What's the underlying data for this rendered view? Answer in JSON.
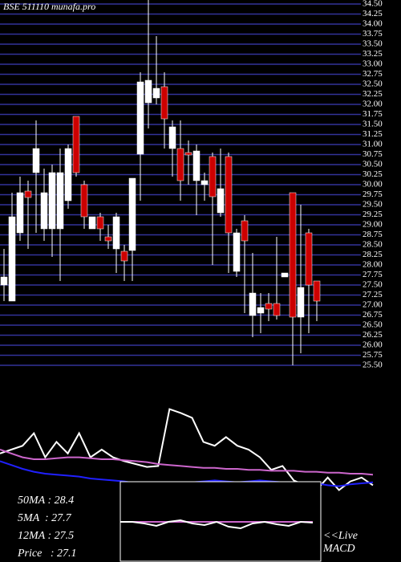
{
  "chart_data": [
    {
      "type": "candlestick",
      "title": "BSE 511110 munafa.pro",
      "open": [
        27.5,
        27.1,
        28.8,
        29.84,
        30.3,
        28.9,
        28.9,
        28.9,
        29.6,
        31.7,
        30.0,
        28.9,
        29.2,
        28.7,
        28.4,
        28.34,
        28.36,
        30.76,
        32.04,
        32.16,
        32.44,
        30.9,
        30.9,
        30.8,
        30.1,
        30.0,
        30.7,
        29.3,
        30.7,
        27.84,
        29.1,
        26.74,
        26.8,
        27.04,
        27.04,
        27.7,
        29.8,
        26.7,
        28.8,
        27.6
      ],
      "high": [
        28.4,
        29.8,
        30.2,
        30.1,
        31.6,
        30.4,
        30.5,
        30.9,
        31.0,
        31.7,
        30.1,
        29.2,
        29.3,
        29.0,
        29.3,
        28.5,
        30.16,
        32.8,
        34.6,
        33.7,
        32.8,
        31.6,
        31.6,
        31.1,
        31.0,
        30.3,
        30.8,
        30.9,
        30.8,
        28.9,
        29.24,
        28.3,
        27.3,
        27.3,
        28.7,
        27.8,
        29.8,
        29.5,
        28.9,
        27.6
      ],
      "low": [
        27.1,
        27.1,
        28.6,
        28.4,
        28.8,
        28.6,
        28.2,
        27.6,
        29.4,
        30.2,
        28.9,
        28.9,
        28.6,
        28.4,
        27.8,
        27.6,
        27.6,
        29.6,
        31.4,
        32.0,
        30.9,
        30.2,
        29.6,
        30.0,
        29.24,
        29.6,
        28.0,
        29.2,
        27.8,
        27.7,
        26.8,
        26.2,
        26.3,
        26.6,
        26.64,
        27.7,
        25.5,
        25.8,
        26.3,
        26.6
      ],
      "close": [
        27.7,
        29.2,
        29.8,
        29.68,
        30.9,
        29.8,
        30.3,
        30.3,
        30.9,
        30.3,
        29.2,
        29.2,
        28.9,
        28.6,
        29.2,
        28.1,
        30.16,
        32.56,
        32.6,
        32.4,
        31.64,
        31.44,
        30.1,
        30.74,
        30.84,
        30.1,
        29.7,
        29.9,
        28.8,
        28.8,
        28.6,
        27.3,
        26.94,
        26.9,
        26.74,
        27.8,
        26.7,
        27.44,
        27.5,
        27.1
      ],
      "ylim": [
        25.5,
        34.6
      ],
      "yticks": [
        {
          "value": 25.5,
          "label": "25.50"
        },
        25.75,
        {
          "value": 26,
          "label": "26.00"
        },
        26.25,
        {
          "value": 26.5,
          "label": "26.50"
        },
        26.75,
        {
          "value": 27,
          "label": "27.00"
        },
        27.25,
        {
          "value": 27.5,
          "label": "27.50"
        },
        27.75,
        {
          "value": 28,
          "label": "28.00"
        },
        28.25,
        {
          "value": 28.5,
          "label": "28.50"
        },
        28.75,
        {
          "value": 29,
          "label": "29.00"
        },
        29.25,
        {
          "value": 29.5,
          "label": "29.50"
        },
        29.75,
        {
          "value": 30,
          "label": "30.00"
        },
        30.25,
        {
          "value": 30.5,
          "label": "30.50"
        },
        30.75,
        {
          "value": 31,
          "label": "31.00"
        },
        31.25,
        {
          "value": 31.5,
          "label": "31.50"
        },
        31.75,
        {
          "value": 32,
          "label": "32.00"
        },
        32.25,
        {
          "value": 32.5,
          "label": "32.50"
        },
        32.75,
        {
          "value": 33,
          "label": "33.00"
        },
        33.25,
        {
          "value": 33.5,
          "label": "33.50"
        },
        33.75,
        {
          "value": 34,
          "label": "34.00"
        },
        34.25,
        {
          "value": 34.5,
          "label": "34.50"
        }
      ],
      "grid": true,
      "grid_color": "#333399",
      "up_color": "#ffffff",
      "down_color": "#cc0000"
    },
    {
      "type": "line",
      "ylim": [
        0,
        100
      ],
      "series": [
        {
          "color": "#ffffff",
          "values": [
            46,
            50,
            54,
            67,
            42,
            58,
            46,
            67,
            42,
            50,
            42,
            38,
            35,
            32,
            33,
            92,
            88,
            83,
            58,
            54,
            63,
            54,
            50,
            42,
            29,
            33,
            18,
            13,
            8,
            21,
            8,
            17,
            21,
            13
          ]
        },
        {
          "color": "#cc66cc",
          "values": [
            50,
            46,
            42,
            40,
            40,
            41,
            42,
            42,
            41,
            40,
            40,
            39,
            38,
            37,
            35,
            34,
            33,
            32,
            31,
            31,
            30,
            30,
            29,
            29,
            28,
            28,
            28,
            27,
            27,
            26,
            26,
            25,
            25,
            24
          ]
        },
        {
          "color": "#2020ff",
          "values": [
            38,
            34,
            30,
            27,
            25,
            24,
            23,
            22,
            20,
            19,
            18,
            17,
            15,
            14,
            13,
            14,
            15,
            16,
            17,
            18,
            17,
            16,
            17,
            18,
            17,
            16,
            15,
            14,
            15,
            13,
            12,
            14,
            15,
            16
          ]
        }
      ],
      "annotations": [
        "50MA : 28.4",
        "5MA  : 27.7",
        "12MA : 27.5",
        "Price   : 27.1"
      ]
    },
    {
      "type": "line",
      "ylim": [
        0,
        100
      ],
      "series": [
        {
          "color": "#cc66cc",
          "values": [
            50,
            50,
            50,
            50,
            50,
            50,
            50,
            50,
            50,
            50,
            50,
            50,
            50,
            50,
            50,
            50,
            50
          ]
        },
        {
          "color": "#ffffff",
          "values": [
            50,
            50,
            48,
            45,
            50,
            52,
            48,
            46,
            50,
            44,
            42,
            48,
            50,
            47,
            45,
            50,
            49
          ]
        }
      ],
      "annotations": [
        "<<Live",
        "MACD"
      ]
    }
  ]
}
